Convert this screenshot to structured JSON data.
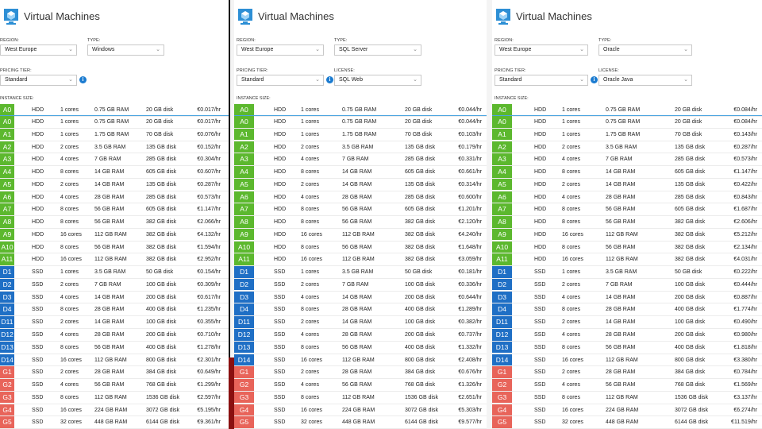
{
  "colors": {
    "A": "#5cb82e",
    "D": "#1f6fc5",
    "G": "#e8645a",
    "rule": "#4aa3df",
    "info": "#1a7bd0"
  },
  "panels": [
    {
      "title": "Virtual Machines",
      "region": {
        "label": "REGION:",
        "value": "West Europe"
      },
      "type": {
        "label": "TYPE:",
        "value": "Windows"
      },
      "tier": {
        "label": "PRICING TIER:",
        "value": "Standard"
      },
      "license": null,
      "size_label": "INSTANCE SIZE:",
      "selected": {
        "name": "A0",
        "disk": "HDD",
        "cores": "1 cores",
        "ram": "0.75 GB RAM",
        "storage": "20 GB disk",
        "price": "€0.017/hr"
      },
      "rows": [
        {
          "name": "A0",
          "disk": "HDD",
          "cores": "1 cores",
          "ram": "0.75 GB RAM",
          "storage": "20 GB disk",
          "price": "€0.017/hr"
        },
        {
          "name": "A1",
          "disk": "HDD",
          "cores": "1 cores",
          "ram": "1.75 GB RAM",
          "storage": "70 GB disk",
          "price": "€0.076/hr"
        },
        {
          "name": "A2",
          "disk": "HDD",
          "cores": "2 cores",
          "ram": "3.5 GB RAM",
          "storage": "135 GB disk",
          "price": "€0.152/hr"
        },
        {
          "name": "A3",
          "disk": "HDD",
          "cores": "4 cores",
          "ram": "7 GB RAM",
          "storage": "285 GB disk",
          "price": "€0.304/hr"
        },
        {
          "name": "A4",
          "disk": "HDD",
          "cores": "8 cores",
          "ram": "14 GB RAM",
          "storage": "605 GB disk",
          "price": "€0.607/hr"
        },
        {
          "name": "A5",
          "disk": "HDD",
          "cores": "2 cores",
          "ram": "14 GB RAM",
          "storage": "135 GB disk",
          "price": "€0.287/hr"
        },
        {
          "name": "A6",
          "disk": "HDD",
          "cores": "4 cores",
          "ram": "28 GB RAM",
          "storage": "285 GB disk",
          "price": "€0.573/hr"
        },
        {
          "name": "A7",
          "disk": "HDD",
          "cores": "8 cores",
          "ram": "56 GB RAM",
          "storage": "605 GB disk",
          "price": "€1.147/hr"
        },
        {
          "name": "A8",
          "disk": "HDD",
          "cores": "8 cores",
          "ram": "56 GB RAM",
          "storage": "382 GB disk",
          "price": "€2.066/hr"
        },
        {
          "name": "A9",
          "disk": "HDD",
          "cores": "16 cores",
          "ram": "112 GB RAM",
          "storage": "382 GB disk",
          "price": "€4.132/hr"
        },
        {
          "name": "A10",
          "disk": "HDD",
          "cores": "8 cores",
          "ram": "56 GB RAM",
          "storage": "382 GB disk",
          "price": "€1.594/hr"
        },
        {
          "name": "A11",
          "disk": "HDD",
          "cores": "16 cores",
          "ram": "112 GB RAM",
          "storage": "382 GB disk",
          "price": "€2.952/hr"
        },
        {
          "name": "D1",
          "disk": "SSD",
          "cores": "1 cores",
          "ram": "3.5 GB RAM",
          "storage": "50 GB disk",
          "price": "€0.154/hr"
        },
        {
          "name": "D2",
          "disk": "SSD",
          "cores": "2 cores",
          "ram": "7 GB RAM",
          "storage": "100 GB disk",
          "price": "€0.309/hr"
        },
        {
          "name": "D3",
          "disk": "SSD",
          "cores": "4 cores",
          "ram": "14 GB RAM",
          "storage": "200 GB disk",
          "price": "€0.617/hr"
        },
        {
          "name": "D4",
          "disk": "SSD",
          "cores": "8 cores",
          "ram": "28 GB RAM",
          "storage": "400 GB disk",
          "price": "€1.235/hr"
        },
        {
          "name": "D11",
          "disk": "SSD",
          "cores": "2 cores",
          "ram": "14 GB RAM",
          "storage": "100 GB disk",
          "price": "€0.355/hr"
        },
        {
          "name": "D12",
          "disk": "SSD",
          "cores": "4 cores",
          "ram": "28 GB RAM",
          "storage": "200 GB disk",
          "price": "€0.710/hr"
        },
        {
          "name": "D13",
          "disk": "SSD",
          "cores": "8 cores",
          "ram": "56 GB RAM",
          "storage": "400 GB disk",
          "price": "€1.278/hr"
        },
        {
          "name": "D14",
          "disk": "SSD",
          "cores": "16 cores",
          "ram": "112 GB RAM",
          "storage": "800 GB disk",
          "price": "€2.301/hr"
        },
        {
          "name": "G1",
          "disk": "SSD",
          "cores": "2 cores",
          "ram": "28 GB RAM",
          "storage": "384 GB disk",
          "price": "€0.649/hr"
        },
        {
          "name": "G2",
          "disk": "SSD",
          "cores": "4 cores",
          "ram": "56 GB RAM",
          "storage": "768 GB disk",
          "price": "€1.299/hr"
        },
        {
          "name": "G3",
          "disk": "SSD",
          "cores": "8 cores",
          "ram": "112 GB RAM",
          "storage": "1536 GB disk",
          "price": "€2.597/hr"
        },
        {
          "name": "G4",
          "disk": "SSD",
          "cores": "16 cores",
          "ram": "224 GB RAM",
          "storage": "3072 GB disk",
          "price": "€5.195/hr"
        },
        {
          "name": "G5",
          "disk": "SSD",
          "cores": "32 cores",
          "ram": "448 GB RAM",
          "storage": "6144 GB disk",
          "price": "€9.361/hr"
        }
      ]
    },
    {
      "title": "Virtual Machines",
      "region": {
        "label": "REGION:",
        "value": "West Europe"
      },
      "type": {
        "label": "TYPE:",
        "value": "SQL Server"
      },
      "tier": {
        "label": "PRICING TIER:",
        "value": "Standard"
      },
      "license": {
        "label": "LICENSE:",
        "value": "SQL Web"
      },
      "size_label": "INSTANCE SIZE:",
      "selected": {
        "name": "A0",
        "disk": "HDD",
        "cores": "1 cores",
        "ram": "0.75 GB RAM",
        "storage": "20 GB disk",
        "price": "€0.044/hr"
      },
      "rows": [
        {
          "name": "A0",
          "disk": "HDD",
          "cores": "1 cores",
          "ram": "0.75 GB RAM",
          "storage": "20 GB disk",
          "price": "€0.044/hr"
        },
        {
          "name": "A1",
          "disk": "HDD",
          "cores": "1 cores",
          "ram": "1.75 GB RAM",
          "storage": "70 GB disk",
          "price": "€0.103/hr"
        },
        {
          "name": "A2",
          "disk": "HDD",
          "cores": "2 cores",
          "ram": "3.5 GB RAM",
          "storage": "135 GB disk",
          "price": "€0.179/hr"
        },
        {
          "name": "A3",
          "disk": "HDD",
          "cores": "4 cores",
          "ram": "7 GB RAM",
          "storage": "285 GB disk",
          "price": "€0.331/hr"
        },
        {
          "name": "A4",
          "disk": "HDD",
          "cores": "8 cores",
          "ram": "14 GB RAM",
          "storage": "605 GB disk",
          "price": "€0.661/hr"
        },
        {
          "name": "A5",
          "disk": "HDD",
          "cores": "2 cores",
          "ram": "14 GB RAM",
          "storage": "135 GB disk",
          "price": "€0.314/hr"
        },
        {
          "name": "A6",
          "disk": "HDD",
          "cores": "4 cores",
          "ram": "28 GB RAM",
          "storage": "285 GB disk",
          "price": "€0.600/hr"
        },
        {
          "name": "A7",
          "disk": "HDD",
          "cores": "8 cores",
          "ram": "56 GB RAM",
          "storage": "605 GB disk",
          "price": "€1.201/hr"
        },
        {
          "name": "A8",
          "disk": "HDD",
          "cores": "8 cores",
          "ram": "56 GB RAM",
          "storage": "382 GB disk",
          "price": "€2.120/hr"
        },
        {
          "name": "A9",
          "disk": "HDD",
          "cores": "16 cores",
          "ram": "112 GB RAM",
          "storage": "382 GB disk",
          "price": "€4.240/hr"
        },
        {
          "name": "A10",
          "disk": "HDD",
          "cores": "8 cores",
          "ram": "56 GB RAM",
          "storage": "382 GB disk",
          "price": "€1.648/hr"
        },
        {
          "name": "A11",
          "disk": "HDD",
          "cores": "16 cores",
          "ram": "112 GB RAM",
          "storage": "382 GB disk",
          "price": "€3.059/hr"
        },
        {
          "name": "D1",
          "disk": "SSD",
          "cores": "1 cores",
          "ram": "3.5 GB RAM",
          "storage": "50 GB disk",
          "price": "€0.181/hr"
        },
        {
          "name": "D2",
          "disk": "SSD",
          "cores": "2 cores",
          "ram": "7 GB RAM",
          "storage": "100 GB disk",
          "price": "€0.336/hr"
        },
        {
          "name": "D3",
          "disk": "SSD",
          "cores": "4 cores",
          "ram": "14 GB RAM",
          "storage": "200 GB disk",
          "price": "€0.644/hr"
        },
        {
          "name": "D4",
          "disk": "SSD",
          "cores": "8 cores",
          "ram": "28 GB RAM",
          "storage": "400 GB disk",
          "price": "€1.289/hr"
        },
        {
          "name": "D11",
          "disk": "SSD",
          "cores": "2 cores",
          "ram": "14 GB RAM",
          "storage": "100 GB disk",
          "price": "€0.382/hr"
        },
        {
          "name": "D12",
          "disk": "SSD",
          "cores": "4 cores",
          "ram": "28 GB RAM",
          "storage": "200 GB disk",
          "price": "€0.737/hr"
        },
        {
          "name": "D13",
          "disk": "SSD",
          "cores": "8 cores",
          "ram": "56 GB RAM",
          "storage": "400 GB disk",
          "price": "€1.332/hr"
        },
        {
          "name": "D14",
          "disk": "SSD",
          "cores": "16 cores",
          "ram": "112 GB RAM",
          "storage": "800 GB disk",
          "price": "€2.408/hr"
        },
        {
          "name": "G1",
          "disk": "SSD",
          "cores": "2 cores",
          "ram": "28 GB RAM",
          "storage": "384 GB disk",
          "price": "€0.676/hr"
        },
        {
          "name": "G2",
          "disk": "SSD",
          "cores": "4 cores",
          "ram": "56 GB RAM",
          "storage": "768 GB disk",
          "price": "€1.326/hr"
        },
        {
          "name": "G3",
          "disk": "SSD",
          "cores": "8 cores",
          "ram": "112 GB RAM",
          "storage": "1536 GB disk",
          "price": "€2.651/hr"
        },
        {
          "name": "G4",
          "disk": "SSD",
          "cores": "16 cores",
          "ram": "224 GB RAM",
          "storage": "3072 GB disk",
          "price": "€5.303/hr"
        },
        {
          "name": "G5",
          "disk": "SSD",
          "cores": "32 cores",
          "ram": "448 GB RAM",
          "storage": "6144 GB disk",
          "price": "€9.577/hr"
        }
      ]
    },
    {
      "title": "Virtual Machines",
      "region": {
        "label": "REGION:",
        "value": "West Europe"
      },
      "type": {
        "label": "TYPE:",
        "value": "Oracle"
      },
      "tier": {
        "label": "PRICING TIER:",
        "value": "Standard"
      },
      "license": {
        "label": "LICENSE:",
        "value": "Oracle Java"
      },
      "size_label": "INSTANCE SIZE:",
      "selected": {
        "name": "A0",
        "disk": "HDD",
        "cores": "1 cores",
        "ram": "0.75 GB RAM",
        "storage": "20 GB disk",
        "price": "€0.084/hr"
      },
      "rows": [
        {
          "name": "A0",
          "disk": "HDD",
          "cores": "1 cores",
          "ram": "0.75 GB RAM",
          "storage": "20 GB disk",
          "price": "€0.084/hr"
        },
        {
          "name": "A1",
          "disk": "HDD",
          "cores": "1 cores",
          "ram": "1.75 GB RAM",
          "storage": "70 GB disk",
          "price": "€0.143/hr"
        },
        {
          "name": "A2",
          "disk": "HDD",
          "cores": "2 cores",
          "ram": "3.5 GB RAM",
          "storage": "135 GB disk",
          "price": "€0.287/hr"
        },
        {
          "name": "A3",
          "disk": "HDD",
          "cores": "4 cores",
          "ram": "7 GB RAM",
          "storage": "285 GB disk",
          "price": "€0.573/hr"
        },
        {
          "name": "A4",
          "disk": "HDD",
          "cores": "8 cores",
          "ram": "14 GB RAM",
          "storage": "605 GB disk",
          "price": "€1.147/hr"
        },
        {
          "name": "A5",
          "disk": "HDD",
          "cores": "2 cores",
          "ram": "14 GB RAM",
          "storage": "135 GB disk",
          "price": "€0.422/hr"
        },
        {
          "name": "A6",
          "disk": "HDD",
          "cores": "4 cores",
          "ram": "28 GB RAM",
          "storage": "285 GB disk",
          "price": "€0.843/hr"
        },
        {
          "name": "A7",
          "disk": "HDD",
          "cores": "8 cores",
          "ram": "56 GB RAM",
          "storage": "605 GB disk",
          "price": "€1.687/hr"
        },
        {
          "name": "A8",
          "disk": "HDD",
          "cores": "8 cores",
          "ram": "56 GB RAM",
          "storage": "382 GB disk",
          "price": "€2.606/hr"
        },
        {
          "name": "A9",
          "disk": "HDD",
          "cores": "16 cores",
          "ram": "112 GB RAM",
          "storage": "382 GB disk",
          "price": "€5.212/hr"
        },
        {
          "name": "A10",
          "disk": "HDD",
          "cores": "8 cores",
          "ram": "56 GB RAM",
          "storage": "382 GB disk",
          "price": "€2.134/hr"
        },
        {
          "name": "A11",
          "disk": "HDD",
          "cores": "16 cores",
          "ram": "112 GB RAM",
          "storage": "382 GB disk",
          "price": "€4.031/hr"
        },
        {
          "name": "D1",
          "disk": "SSD",
          "cores": "1 cores",
          "ram": "3.5 GB RAM",
          "storage": "50 GB disk",
          "price": "€0.222/hr"
        },
        {
          "name": "D2",
          "disk": "SSD",
          "cores": "2 cores",
          "ram": "7 GB RAM",
          "storage": "100 GB disk",
          "price": "€0.444/hr"
        },
        {
          "name": "D3",
          "disk": "SSD",
          "cores": "4 cores",
          "ram": "14 GB RAM",
          "storage": "200 GB disk",
          "price": "€0.887/hr"
        },
        {
          "name": "D4",
          "disk": "SSD",
          "cores": "8 cores",
          "ram": "28 GB RAM",
          "storage": "400 GB disk",
          "price": "€1.774/hr"
        },
        {
          "name": "D11",
          "disk": "SSD",
          "cores": "2 cores",
          "ram": "14 GB RAM",
          "storage": "100 GB disk",
          "price": "€0.490/hr"
        },
        {
          "name": "D12",
          "disk": "SSD",
          "cores": "4 cores",
          "ram": "28 GB RAM",
          "storage": "200 GB disk",
          "price": "€0.980/hr"
        },
        {
          "name": "D13",
          "disk": "SSD",
          "cores": "8 cores",
          "ram": "56 GB RAM",
          "storage": "400 GB disk",
          "price": "€1.818/hr"
        },
        {
          "name": "D14",
          "disk": "SSD",
          "cores": "16 cores",
          "ram": "112 GB RAM",
          "storage": "800 GB disk",
          "price": "€3.380/hr"
        },
        {
          "name": "G1",
          "disk": "SSD",
          "cores": "2 cores",
          "ram": "28 GB RAM",
          "storage": "384 GB disk",
          "price": "€0.784/hr"
        },
        {
          "name": "G2",
          "disk": "SSD",
          "cores": "4 cores",
          "ram": "56 GB RAM",
          "storage": "768 GB disk",
          "price": "€1.569/hr"
        },
        {
          "name": "G3",
          "disk": "SSD",
          "cores": "8 cores",
          "ram": "112 GB RAM",
          "storage": "1536 GB disk",
          "price": "€3.137/hr"
        },
        {
          "name": "G4",
          "disk": "SSD",
          "cores": "16 cores",
          "ram": "224 GB RAM",
          "storage": "3072 GB disk",
          "price": "€6.274/hr"
        },
        {
          "name": "G5",
          "disk": "SSD",
          "cores": "32 cores",
          "ram": "448 GB RAM",
          "storage": "6144 GB disk",
          "price": "€11.519/hr"
        }
      ]
    }
  ]
}
